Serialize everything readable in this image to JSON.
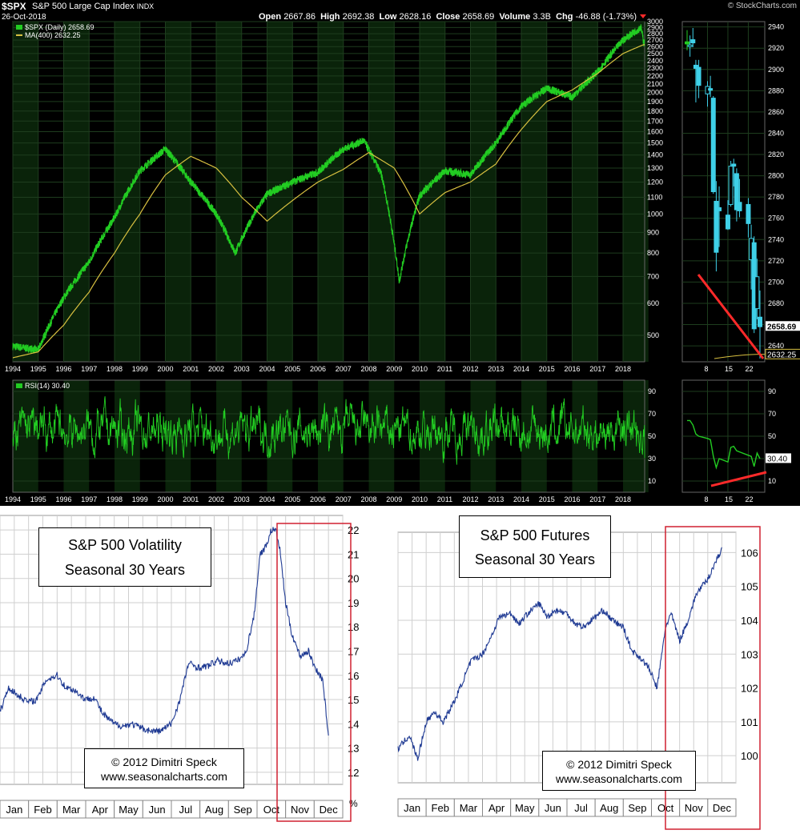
{
  "header": {
    "symbol": "$SPX",
    "name": "S&P 500 Large Cap Index",
    "exchange": "INDX",
    "date": "26-Oct-2018",
    "brand": "© StockCharts.com",
    "quote": {
      "open_label": "Open",
      "open": "2667.86",
      "high_label": "High",
      "high": "2692.38",
      "low_label": "Low",
      "low": "2628.16",
      "close_label": "Close",
      "close": "2658.69",
      "volume_label": "Volume",
      "volume": "3.3B",
      "chg_label": "Chg",
      "chg": "-46.88 (-1.73%)"
    }
  },
  "legend": {
    "price": "$SPX (Daily) 2658.69",
    "ma": "MA(400) 2632.25",
    "rsi": "RSI(14) 30.40"
  },
  "colors": {
    "price": "#22cc22",
    "ma": "#d8c040",
    "candle": "#3fd0e8",
    "trendline": "#ff2a2a",
    "seasonal": "#1f3a93",
    "highlight_box": "#d02030"
  },
  "chart_data": [
    {
      "type": "line",
      "id": "spx-long-term",
      "scale": "log",
      "series": [
        {
          "name": "$SPX (Daily) 2658.69",
          "x": [
            1994,
            1995,
            1996,
            1997,
            1998,
            1999,
            2000,
            2001,
            2002,
            2002.75,
            2003.5,
            2004,
            2005,
            2006,
            2007,
            2007.8,
            2008.5,
            2009.2,
            2010,
            2011,
            2012,
            2013,
            2014,
            2015,
            2016,
            2017,
            2018,
            2018.7,
            2018.82
          ],
          "values": [
            470,
            460,
            620,
            760,
            980,
            1280,
            1450,
            1200,
            1000,
            800,
            1000,
            1120,
            1200,
            1270,
            1450,
            1520,
            1250,
            680,
            1110,
            1280,
            1250,
            1500,
            1850,
            2050,
            1950,
            2250,
            2700,
            2900,
            2658
          ]
        },
        {
          "name": "MA(400) 2632.25",
          "x": [
            1994,
            1995,
            1996,
            1997,
            1998,
            1999,
            2000,
            2001,
            2002,
            2003,
            2004,
            2005,
            2006,
            2007,
            2008,
            2009,
            2010,
            2011,
            2012,
            2013,
            2014,
            2015,
            2016,
            2017,
            2018,
            2018.82
          ],
          "values": [
            440,
            455,
            530,
            640,
            800,
            1000,
            1250,
            1390,
            1300,
            1100,
            960,
            1080,
            1200,
            1290,
            1420,
            1300,
            1000,
            1130,
            1200,
            1330,
            1620,
            1900,
            2030,
            2230,
            2500,
            2632
          ]
        }
      ],
      "x_ticks": [
        "1994",
        "1995",
        "1996",
        "1997",
        "1998",
        "1999",
        "2000",
        "2001",
        "2002",
        "2003",
        "2004",
        "2005",
        "2006",
        "2007",
        "2008",
        "2009",
        "2010",
        "2011",
        "2012",
        "2013",
        "2014",
        "2015",
        "2016",
        "2017",
        "2018"
      ],
      "y_ticks": [
        500,
        600,
        700,
        800,
        900,
        1000,
        1100,
        1200,
        1300,
        1400,
        1500,
        1600,
        1700,
        1800,
        1900,
        2000,
        2100,
        2200,
        2300,
        2400,
        2500,
        2600,
        2700,
        2800,
        2900,
        3000
      ],
      "ylim": [
        430,
        3000
      ]
    },
    {
      "type": "line",
      "id": "spx-rsi",
      "series": [
        {
          "name": "RSI(14) 30.40",
          "value": 30.4
        }
      ],
      "x_ticks": [
        "1994",
        "1995",
        "1996",
        "1997",
        "1998",
        "1999",
        "2000",
        "2001",
        "2002",
        "2003",
        "2004",
        "2005",
        "2006",
        "2007",
        "2008",
        "2009",
        "2010",
        "2011",
        "2012",
        "2013",
        "2014",
        "2015",
        "2016",
        "2017",
        "2018"
      ],
      "y_ticks": [
        10,
        30,
        50,
        70,
        90
      ],
      "ylim": [
        0,
        100
      ]
    },
    {
      "type": "bar",
      "id": "spx-october-candles",
      "series": [
        {
          "name": "ohlc",
          "days": [
            1,
            2,
            3,
            4,
            5,
            8,
            9,
            10,
            11,
            12,
            15,
            16,
            17,
            18,
            19,
            22,
            23,
            24,
            25,
            26
          ],
          "open": [
            2926,
            2923,
            2928,
            2904,
            2902,
            2877,
            2882,
            2873,
            2776,
            2770,
            2763,
            2773,
            2811,
            2802,
            2775,
            2773,
            2721,
            2737,
            2675,
            2667
          ],
          "high": [
            2937,
            2932,
            2939,
            2909,
            2909,
            2889,
            2894,
            2875,
            2795,
            2790,
            2777,
            2814,
            2816,
            2807,
            2797,
            2779,
            2754,
            2743,
            2722,
            2692
          ],
          "low": [
            2918,
            2912,
            2921,
            2869,
            2873,
            2865,
            2874,
            2783,
            2710,
            2733,
            2749,
            2771,
            2790,
            2757,
            2761,
            2742,
            2693,
            2652,
            2665,
            2628
          ],
          "close": [
            2924,
            2923,
            2925,
            2901,
            2885,
            2884,
            2881,
            2785,
            2728,
            2767,
            2750,
            2809,
            2809,
            2768,
            2767,
            2755,
            2741,
            2656,
            2705,
            2658
          ]
        }
      ],
      "x_ticks": [
        "8",
        "15",
        "22"
      ],
      "y_ticks": [
        2640,
        2660,
        2680,
        2700,
        2720,
        2740,
        2760,
        2780,
        2800,
        2820,
        2840,
        2860,
        2880,
        2900,
        2920,
        2940
      ],
      "ylim": [
        2625,
        2945
      ],
      "tags": [
        "2658.69",
        "2632.25"
      ]
    },
    {
      "type": "line",
      "id": "spx-october-rsi",
      "series": [
        {
          "name": "RSI",
          "days": [
            1,
            2,
            3,
            4,
            5,
            8,
            9,
            10,
            11,
            12,
            15,
            16,
            17,
            18,
            19,
            22,
            23,
            24,
            25,
            26
          ],
          "values": [
            64,
            64,
            60,
            52,
            50,
            48,
            47,
            32,
            22,
            30,
            27,
            40,
            41,
            37,
            36,
            33,
            32,
            23,
            35,
            30
          ]
        }
      ],
      "x_ticks": [
        "8",
        "15",
        "22"
      ],
      "y_ticks": [
        10,
        30,
        50,
        70,
        90
      ],
      "ylim": [
        0,
        100
      ],
      "tag": "30.40"
    },
    {
      "type": "line",
      "id": "vix-seasonal",
      "title_lines": [
        "S&P 500 Volatility",
        "Seasonal 30 Years"
      ],
      "copyright_lines": [
        "© 2012  Dimitri Speck",
        "www.seasonalcharts.com"
      ],
      "categories": [
        "Jan",
        "Feb",
        "Mar",
        "Apr",
        "May",
        "Jun",
        "Jul",
        "Aug",
        "Sep",
        "Oct",
        "Nov",
        "Dec"
      ],
      "series": [
        {
          "name": "",
          "x": [
            0,
            0.3,
            0.6,
            1,
            1.3,
            1.6,
            2,
            2.3,
            2.6,
            3,
            3.3,
            3.6,
            4,
            4.3,
            4.6,
            5,
            5.3,
            5.6,
            6,
            6.3,
            6.6,
            7,
            7.3,
            7.6,
            8,
            8.3,
            8.6,
            8.9,
            9.1,
            9.3,
            9.5,
            9.65,
            9.8,
            10,
            10.2,
            10.5,
            10.8,
            11,
            11.3,
            11.5
          ],
          "values": [
            14.5,
            15.5,
            15.2,
            14.9,
            15.0,
            15.8,
            16.0,
            15.5,
            15.4,
            15.0,
            15.1,
            14.4,
            14.0,
            13.9,
            14.0,
            13.8,
            13.7,
            13.7,
            14.0,
            15.0,
            16.5,
            16.3,
            16.4,
            16.6,
            16.5,
            16.6,
            16.9,
            18.5,
            21.0,
            21.3,
            22.0,
            22.0,
            21.2,
            19.0,
            17.8,
            16.8,
            17.0,
            16.4,
            15.8,
            13.5
          ]
        }
      ],
      "y_ticks": [
        12,
        13,
        14,
        15,
        16,
        17,
        18,
        19,
        20,
        21,
        22
      ],
      "ylim": [
        11.5,
        22.6
      ],
      "unit": "%"
    },
    {
      "type": "line",
      "id": "spx-futures-seasonal",
      "title_lines": [
        "S&P 500 Futures",
        "Seasonal 30 Years"
      ],
      "copyright_lines": [
        "© 2012  Dimitri Speck",
        "www.seasonalcharts.com"
      ],
      "categories": [
        "Jan",
        "Feb",
        "Mar",
        "Apr",
        "May",
        "Jun",
        "Jul",
        "Aug",
        "Sep",
        "Oct",
        "Nov",
        "Dec"
      ],
      "series": [
        {
          "name": "",
          "x": [
            0,
            0.4,
            0.7,
            1,
            1.3,
            1.6,
            2,
            2.3,
            2.6,
            3,
            3.3,
            3.6,
            4,
            4.3,
            4.6,
            5,
            5.3,
            5.6,
            6,
            6.3,
            6.6,
            7,
            7.3,
            7.6,
            8,
            8.3,
            8.6,
            8.9,
            9.2,
            9.5,
            9.7,
            10,
            10.3,
            10.6,
            11,
            11.2,
            11.5
          ],
          "values": [
            100.2,
            100.6,
            99.9,
            101.0,
            101.3,
            101.0,
            101.6,
            102.2,
            102.8,
            103.0,
            103.5,
            104.1,
            104.2,
            103.9,
            104.2,
            104.5,
            104.1,
            104.3,
            104.2,
            103.9,
            103.8,
            104.1,
            104.3,
            104.0,
            103.8,
            103.1,
            102.9,
            102.6,
            102.0,
            103.8,
            104.2,
            103.4,
            104.0,
            104.8,
            105.2,
            105.6,
            106.1
          ]
        }
      ],
      "y_ticks": [
        100,
        101,
        102,
        103,
        104,
        105,
        106
      ],
      "ylim": [
        99.2,
        106.6
      ]
    }
  ]
}
